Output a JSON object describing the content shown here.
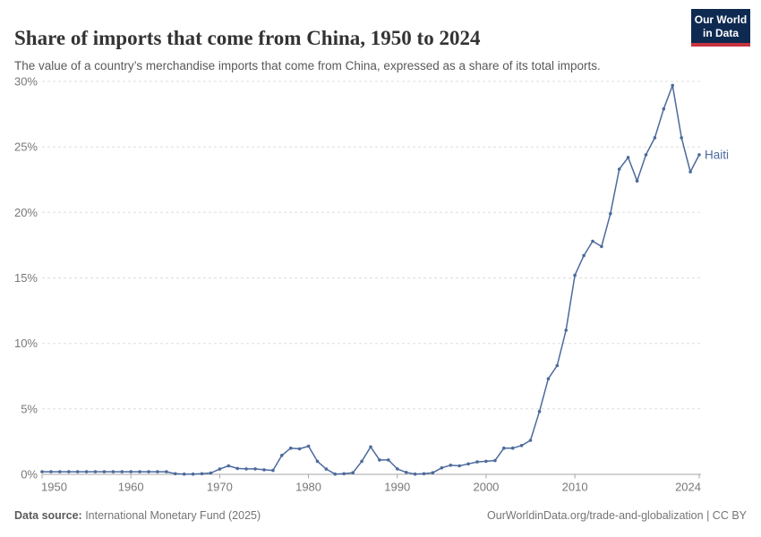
{
  "header": {
    "title": "Share of imports that come from China, 1950 to 2024",
    "subtitle": "The value of a country’s merchandise imports that come from China, expressed as a share of its total imports."
  },
  "logo": {
    "line1": "Our World",
    "line2": "in Data",
    "bg_color": "#0e2a51",
    "accent_color": "#c7333f"
  },
  "footer": {
    "datasource_label": "Data source:",
    "datasource_value": " International Monetary Fund (2025)",
    "link": "OurWorldinData.org/trade-and-globalization",
    "separator": " | ",
    "license": "CC BY"
  },
  "colors": {
    "line": "#4C6A9C",
    "gridline": "#dddddd",
    "axis": "#a5a5a5",
    "tick_label": "#787878",
    "series_label": "#4C6A9C"
  },
  "chart_data": {
    "type": "line",
    "title": "Share of imports that come from China, 1950 to 2024",
    "xlabel": "",
    "ylabel": "",
    "xlim": [
      1950,
      2024
    ],
    "ylim": [
      0,
      30
    ],
    "grid": "horizontal-dashed",
    "legend_position": "end-of-line-label",
    "x_ticks": [
      1950,
      1960,
      1970,
      1980,
      1990,
      2000,
      2010,
      2024
    ],
    "x_tick_labels": [
      "1950",
      "1960",
      "1970",
      "1980",
      "1990",
      "2000",
      "2010",
      "2024"
    ],
    "y_ticks": [
      0,
      5,
      10,
      15,
      20,
      25,
      30
    ],
    "y_tick_labels": [
      "0%",
      "5%",
      "10%",
      "15%",
      "20%",
      "25%",
      "30%"
    ],
    "series": [
      {
        "name": "Haiti",
        "unit": "%",
        "points": [
          [
            1950,
            0.2
          ],
          [
            1951,
            0.2
          ],
          [
            1952,
            0.2
          ],
          [
            1953,
            0.2
          ],
          [
            1954,
            0.2
          ],
          [
            1955,
            0.2
          ],
          [
            1956,
            0.2
          ],
          [
            1957,
            0.2
          ],
          [
            1958,
            0.2
          ],
          [
            1959,
            0.2
          ],
          [
            1960,
            0.2
          ],
          [
            1961,
            0.2
          ],
          [
            1962,
            0.2
          ],
          [
            1963,
            0.2
          ],
          [
            1964,
            0.2
          ],
          [
            1965,
            0.05
          ],
          [
            1966,
            0.02
          ],
          [
            1967,
            0.02
          ],
          [
            1968,
            0.05
          ],
          [
            1969,
            0.1
          ],
          [
            1970,
            0.4
          ],
          [
            1971,
            0.65
          ],
          [
            1972,
            0.45
          ],
          [
            1973,
            0.42
          ],
          [
            1974,
            0.42
          ],
          [
            1975,
            0.35
          ],
          [
            1976,
            0.3
          ],
          [
            1977,
            1.45
          ],
          [
            1978,
            2.0
          ],
          [
            1979,
            1.95
          ],
          [
            1980,
            2.15
          ],
          [
            1981,
            1.0
          ],
          [
            1982,
            0.4
          ],
          [
            1983,
            0.02
          ],
          [
            1984,
            0.05
          ],
          [
            1985,
            0.12
          ],
          [
            1986,
            1.0
          ],
          [
            1987,
            2.1
          ],
          [
            1988,
            1.1
          ],
          [
            1989,
            1.1
          ],
          [
            1990,
            0.42
          ],
          [
            1991,
            0.15
          ],
          [
            1992,
            0.02
          ],
          [
            1993,
            0.05
          ],
          [
            1994,
            0.12
          ],
          [
            1995,
            0.5
          ],
          [
            1996,
            0.7
          ],
          [
            1997,
            0.65
          ],
          [
            1998,
            0.8
          ],
          [
            1999,
            0.95
          ],
          [
            2000,
            1.0
          ],
          [
            2001,
            1.05
          ],
          [
            2002,
            2.0
          ],
          [
            2003,
            2.0
          ],
          [
            2004,
            2.2
          ],
          [
            2005,
            2.6
          ],
          [
            2006,
            4.8
          ],
          [
            2007,
            7.3
          ],
          [
            2008,
            8.3
          ],
          [
            2009,
            11.0
          ],
          [
            2010,
            15.2
          ],
          [
            2011,
            16.7
          ],
          [
            2012,
            17.8
          ],
          [
            2013,
            17.4
          ],
          [
            2014,
            19.9
          ],
          [
            2015,
            23.3
          ],
          [
            2016,
            24.2
          ],
          [
            2017,
            22.4
          ],
          [
            2018,
            24.4
          ],
          [
            2019,
            25.7
          ],
          [
            2020,
            27.9
          ],
          [
            2021,
            29.7
          ],
          [
            2022,
            25.7
          ],
          [
            2023,
            23.1
          ],
          [
            2024,
            24.4
          ]
        ]
      }
    ]
  }
}
